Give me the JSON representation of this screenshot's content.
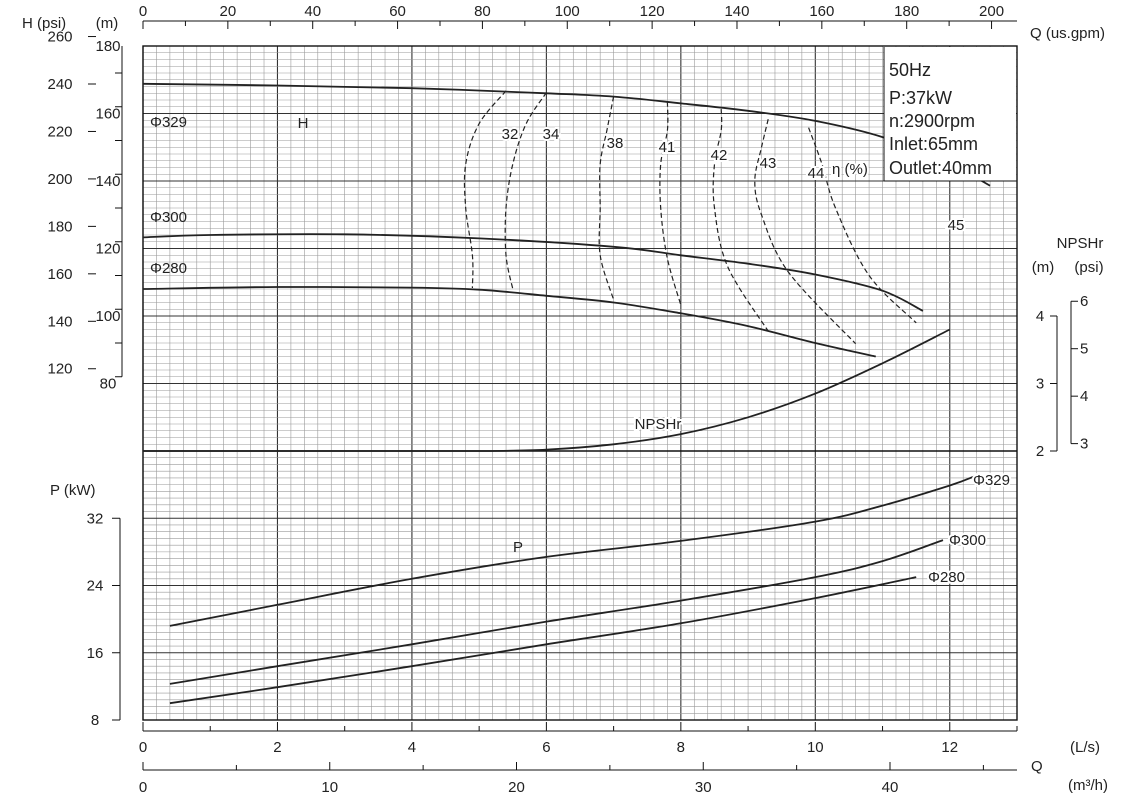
{
  "chart_data": {
    "type": "line",
    "axes": {
      "q_ls": {
        "label": "(L/s)",
        "range": [
          0,
          13
        ],
        "ticks": [
          "0",
          "2",
          "4",
          "6",
          "8",
          "10",
          "12"
        ]
      },
      "q_gpm": {
        "label": "Q  (us.gpm)",
        "range": [
          0,
          206
        ],
        "ticks": [
          "0",
          "20",
          "40",
          "60",
          "80",
          "100",
          "120",
          "140",
          "160",
          "180",
          "200"
        ]
      },
      "q_m3h": {
        "label": "(m³/h)",
        "q_label": "Q",
        "range": [
          0,
          46.8
        ],
        "ticks": [
          "0",
          "10",
          "20",
          "30",
          "40"
        ]
      },
      "h_m": {
        "label": "(m)",
        "range": [
          60,
          180
        ],
        "ticks": [
          "80",
          "100",
          "120",
          "140",
          "160",
          "180"
        ]
      },
      "h_psi": {
        "label": "H (psi)",
        "ticks": [
          "120",
          "140",
          "160",
          "180",
          "200",
          "220",
          "240",
          "260"
        ]
      },
      "npsh_m": {
        "label": "(m)",
        "title": "NPSHr",
        "ticks": [
          "2",
          "3",
          "4"
        ]
      },
      "npsh_psi": {
        "label": "(psi)",
        "ticks": [
          "3",
          "4",
          "5",
          "6"
        ]
      },
      "p_kw": {
        "label": "P (kW)",
        "range": [
          8,
          40
        ],
        "ticks": [
          "8",
          "16",
          "24",
          "32"
        ]
      }
    },
    "info_box": [
      "50Hz",
      "P:37kW",
      "n:2900rpm",
      "Inlet:65mm",
      "Outlet:40mm"
    ],
    "head_curves": [
      {
        "name": "Φ329",
        "points": [
          [
            0,
            168.8
          ],
          [
            2,
            168.3
          ],
          [
            4,
            167.5
          ],
          [
            6,
            166.0
          ],
          [
            7,
            165.0
          ],
          [
            8,
            163.0
          ],
          [
            9,
            160.8
          ],
          [
            10,
            157.8
          ],
          [
            11,
            153.0
          ],
          [
            12,
            145.0
          ],
          [
            12.6,
            138.6
          ]
        ]
      },
      {
        "name": "Φ300",
        "points": [
          [
            0,
            123.3
          ],
          [
            1,
            124.0
          ],
          [
            3,
            124.2
          ],
          [
            5,
            123.0
          ],
          [
            7,
            120.5
          ],
          [
            8,
            118.0
          ],
          [
            9,
            115.5
          ],
          [
            10,
            112.3
          ],
          [
            11,
            107.5
          ],
          [
            11.6,
            101.5
          ]
        ]
      },
      {
        "name": "Φ280",
        "points": [
          [
            0,
            108.0
          ],
          [
            2,
            108.6
          ],
          [
            4,
            108.4
          ],
          [
            5,
            107.8
          ],
          [
            6,
            106.0
          ],
          [
            7,
            104.0
          ],
          [
            8,
            100.8
          ],
          [
            9,
            97.0
          ],
          [
            10,
            92.0
          ],
          [
            10.9,
            88.0
          ]
        ]
      }
    ],
    "head_labels": [
      {
        "text": "H",
        "x": 2.4,
        "y": 165.5
      }
    ],
    "efficiency": {
      "label": "η (%)",
      "lines": [
        {
          "name": "32",
          "points": [
            [
              5.4,
              166.7
            ],
            [
              5.0,
              157.0
            ],
            [
              4.8,
              145.0
            ],
            [
              4.8,
              132.0
            ],
            [
              4.9,
              118.0
            ],
            [
              4.9,
              108.3
            ]
          ]
        },
        {
          "name": "34",
          "points": [
            [
              6.0,
              166.2
            ],
            [
              5.7,
              157.0
            ],
            [
              5.5,
              145.0
            ],
            [
              5.4,
              132.0
            ],
            [
              5.4,
              118.0
            ],
            [
              5.5,
              108.0
            ]
          ]
        },
        {
          "name": "38",
          "points": [
            [
              7.0,
              165.0
            ],
            [
              6.9,
              155.0
            ],
            [
              6.8,
              145.0
            ],
            [
              6.8,
              132.0
            ],
            [
              6.8,
              118.0
            ],
            [
              7.0,
              104.8
            ]
          ]
        },
        {
          "name": "41",
          "points": [
            [
              7.8,
              163.5
            ],
            [
              7.8,
              155.0
            ],
            [
              7.7,
              145.0
            ],
            [
              7.7,
              132.0
            ],
            [
              7.8,
              117.0
            ],
            [
              8.0,
              103.3
            ]
          ]
        },
        {
          "name": "42",
          "points": [
            [
              8.6,
              161.3
            ],
            [
              8.6,
              155.0
            ],
            [
              8.5,
              145.0
            ],
            [
              8.5,
              132.0
            ],
            [
              8.7,
              114.5
            ],
            [
              9.3,
              95.5
            ]
          ]
        },
        {
          "name": "43",
          "points": [
            [
              9.3,
              158.3
            ],
            [
              9.2,
              150.0
            ],
            [
              9.1,
              140.0
            ],
            [
              9.2,
              130.0
            ],
            [
              9.6,
              113.0
            ],
            [
              10.6,
              91.8
            ]
          ]
        },
        {
          "name": "44",
          "points": [
            [
              9.9,
              155.8
            ],
            [
              10.1,
              145.0
            ],
            [
              10.3,
              132.0
            ],
            [
              10.8,
              112.0
            ],
            [
              11.5,
              98.0
            ]
          ]
        },
        {
          "name": "45",
          "points": []
        }
      ]
    },
    "npsh_curve": {
      "name": "NPSHr",
      "points": [
        [
          0,
          2.0
        ],
        [
          3,
          2.0
        ],
        [
          5,
          2.0
        ],
        [
          6,
          2.02
        ],
        [
          7,
          2.1
        ],
        [
          8,
          2.25
        ],
        [
          9,
          2.5
        ],
        [
          10,
          2.85
        ],
        [
          11,
          3.3
        ],
        [
          12,
          3.8
        ]
      ]
    },
    "power_curves": [
      {
        "name": "Φ329",
        "points": [
          [
            0.4,
            19.2
          ],
          [
            2,
            21.7
          ],
          [
            4,
            24.8
          ],
          [
            6,
            27.4
          ],
          [
            8,
            29.3
          ],
          [
            10,
            31.6
          ],
          [
            11,
            33.5
          ],
          [
            12,
            35.9
          ],
          [
            12.4,
            37.1
          ]
        ]
      },
      {
        "name": "Φ300",
        "points": [
          [
            0.4,
            12.3
          ],
          [
            2,
            14.4
          ],
          [
            4,
            17.0
          ],
          [
            6,
            19.7
          ],
          [
            8,
            22.2
          ],
          [
            10,
            25.0
          ],
          [
            11,
            26.9
          ],
          [
            11.9,
            29.4
          ]
        ]
      },
      {
        "name": "Φ280",
        "points": [
          [
            0.4,
            10.0
          ],
          [
            2,
            11.9
          ],
          [
            4,
            14.4
          ],
          [
            6,
            17.0
          ],
          [
            8,
            19.5
          ],
          [
            10,
            22.5
          ],
          [
            11.5,
            25.0
          ]
        ]
      }
    ],
    "power_labels": [
      {
        "text": "P",
        "x": 5.5,
        "y": 27.2
      }
    ],
    "grid": true
  },
  "text": {
    "npsh_title": "NPSHr",
    "npsh_m_unit": "(m)",
    "npsh_psi_unit": "(psi)"
  },
  "colors": {
    "line": "#222222",
    "grid_minor": "#9a9a9a",
    "grid_major": "#333333"
  }
}
